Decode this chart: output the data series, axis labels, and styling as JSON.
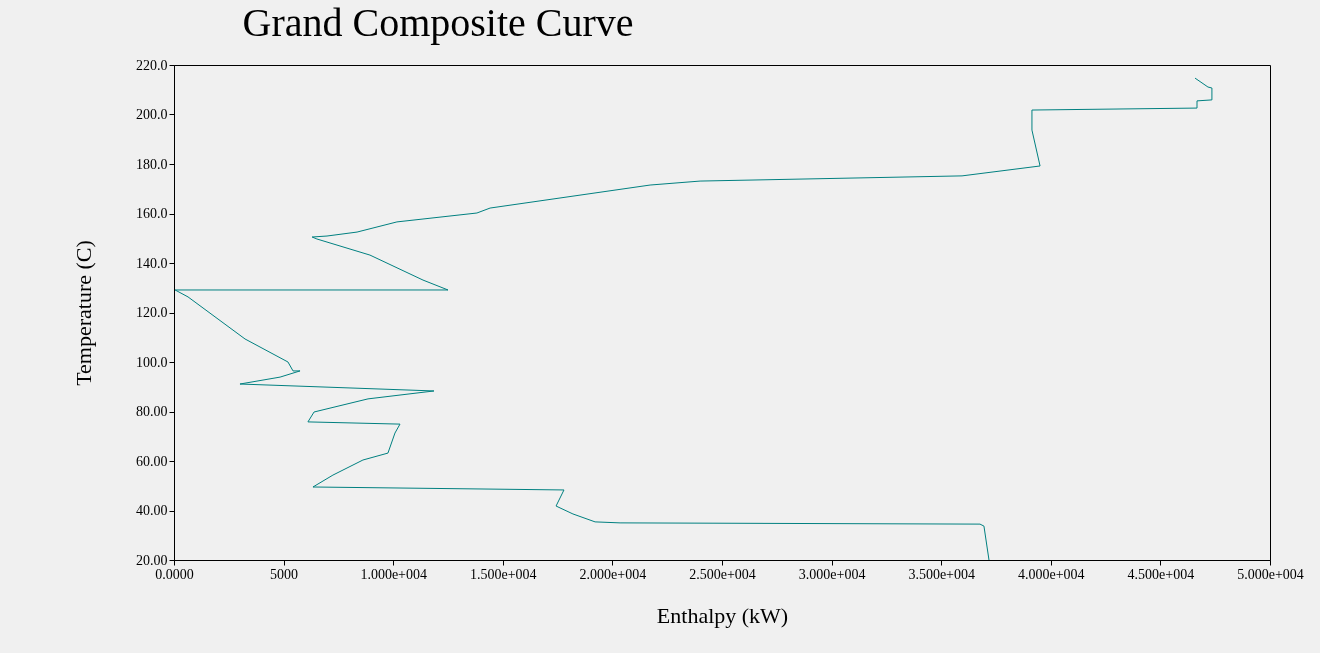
{
  "chart_data": {
    "type": "line",
    "title": "Grand Composite Curve",
    "xlabel": "Enthalpy (kW)",
    "ylabel": "Temperature (C)",
    "series": [
      {
        "color": "#008080",
        "x": [
          37180,
          36950,
          36770,
          20350,
          19210,
          18200,
          17430,
          17790,
          6340,
          7250,
          8620,
          9760,
          10080,
          10310,
          6110,
          6390,
          8850,
          11860,
          3010,
          4840,
          5750,
          5430,
          5200,
          3240,
          640,
          50,
          12500,
          11360,
          8940,
          6520,
          6300,
          6980,
          8350,
          10170,
          13820,
          14420,
          21720,
          24000,
          35950,
          39510,
          39140,
          39140,
          46670,
          46670,
          47350,
          47350,
          47170,
          46580
        ],
        "values": [
          20.0,
          33.7,
          34.5,
          35.0,
          35.4,
          38.6,
          41.8,
          48.3,
          49.5,
          54.3,
          60.4,
          63.2,
          71.3,
          74.9,
          75.8,
          79.8,
          85.1,
          88.3,
          91.1,
          93.9,
          96.4,
          96.4,
          100.0,
          109.3,
          126.3,
          129.1,
          129.1,
          133.1,
          143.2,
          149.7,
          150.5,
          150.9,
          152.5,
          156.6,
          160.2,
          162.2,
          171.5,
          173.1,
          175.2,
          179.2,
          193.7,
          201.8,
          202.6,
          205.5,
          205.9,
          210.7,
          211.1,
          214.7
        ]
      }
    ],
    "xlim": [
      0,
      50000
    ],
    "ylim": [
      20,
      220
    ],
    "xticks": [
      {
        "value": 0,
        "label": "0.0000"
      },
      5000,
      {
        "value": 10000,
        "label": "1.000e+004"
      },
      {
        "value": 15000,
        "label": "1.500e+004"
      },
      {
        "value": 20000,
        "label": "2.000e+004"
      },
      {
        "value": 25000,
        "label": "2.500e+004"
      },
      {
        "value": 30000,
        "label": "3.000e+004"
      },
      {
        "value": 35000,
        "label": "3.500e+004"
      },
      {
        "value": 40000,
        "label": "4.000e+004"
      },
      {
        "value": 45000,
        "label": "4.500e+004"
      },
      {
        "value": 50000,
        "label": "5.000e+004"
      }
    ],
    "yticks": [
      {
        "value": 20,
        "label": "20.00"
      },
      {
        "value": 40,
        "label": "40.00"
      },
      {
        "value": 60,
        "label": "60.00"
      },
      {
        "value": 80,
        "label": "80.00"
      },
      {
        "value": 100,
        "label": "100.0"
      },
      {
        "value": 120,
        "label": "120.0"
      },
      {
        "value": 140,
        "label": "140.0"
      },
      {
        "value": 160,
        "label": "160.0"
      },
      {
        "value": 180,
        "label": "180.0"
      },
      {
        "value": 200,
        "label": "200.0"
      },
      {
        "value": 220,
        "label": "220.0"
      }
    ],
    "grid": false,
    "legend": false,
    "marker": "none",
    "line_style": "solid"
  }
}
